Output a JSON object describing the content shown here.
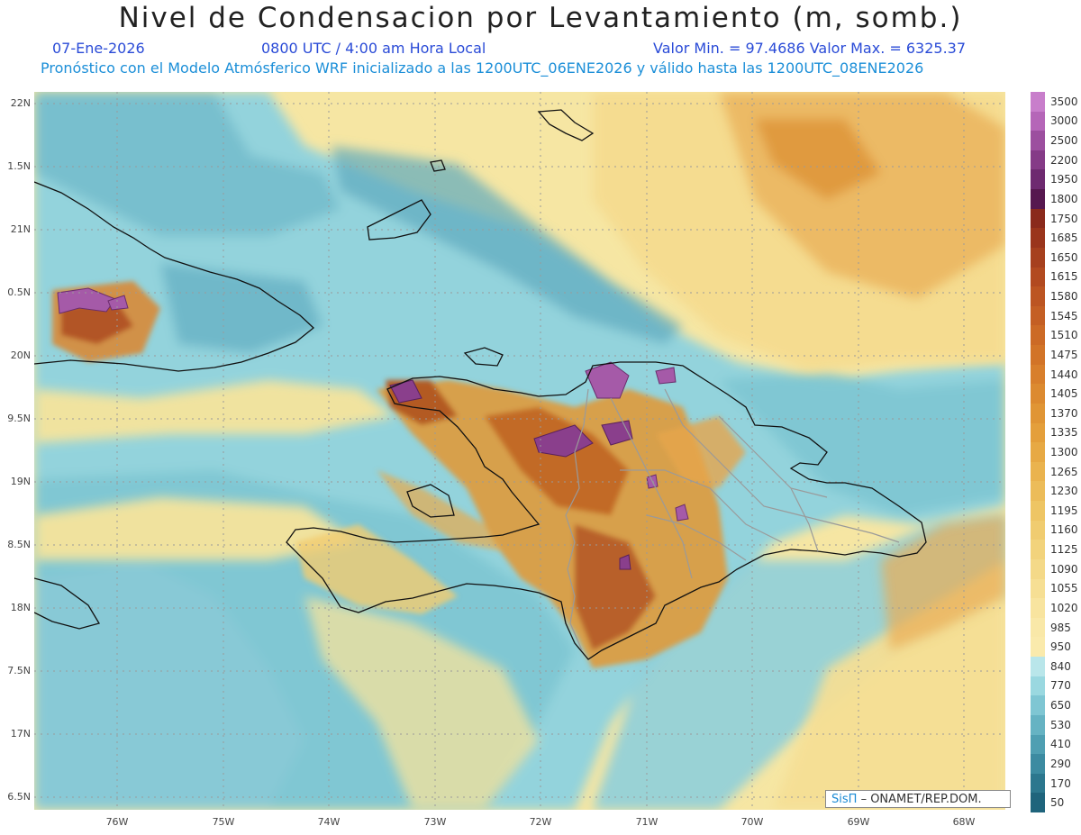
{
  "header": {
    "title": "Nivel de Condensacion por Levantamiento (m, somb.)",
    "date": "07-Ene-2026",
    "time": "0800 UTC / 4:00 am Hora Local",
    "minmax": "Valor Min. = 97.4686  Valor Max. = 6325.37",
    "model_line": "Pronóstico con el Modelo Atmósferico WRF inicializado a las 1200UTC_06ENE2026 y válido hasta las  1200UTC_08ENE2026"
  },
  "lat_labels": [
    "22N",
    "1.5N",
    "21N",
    "0.5N",
    "20N",
    "9.5N",
    "19N",
    "8.5N",
    "18N",
    "7.5N",
    "17N",
    "6.5N"
  ],
  "lon_labels": [
    "76W",
    "75W",
    "74W",
    "73W",
    "72W",
    "71W",
    "70W",
    "69W",
    "68W"
  ],
  "colorbar": {
    "levels": [
      "3500",
      "3000",
      "2500",
      "2200",
      "1950",
      "1800",
      "1750",
      "1685",
      "1650",
      "1615",
      "1580",
      "1545",
      "1510",
      "1475",
      "1440",
      "1405",
      "1370",
      "1335",
      "1300",
      "1265",
      "1230",
      "1195",
      "1160",
      "1125",
      "1090",
      "1055",
      "1020",
      "985",
      "950",
      "840",
      "770",
      "650",
      "530",
      "410",
      "290",
      "170",
      "50"
    ],
    "colors": [
      "#c87ecb",
      "#b566b8",
      "#9c4f9f",
      "#853b87",
      "#6e2a70",
      "#56184f",
      "#8a2a1c",
      "#9a351c",
      "#a6401e",
      "#b24a20",
      "#bc5522",
      "#c45f24",
      "#cc6a26",
      "#d27428",
      "#d87f2c",
      "#dc8a30",
      "#e09535",
      "#e49f3b",
      "#e7a944",
      "#eab34e",
      "#ecbc59",
      "#eec564",
      "#f0cc70",
      "#f2d37c",
      "#f4d988",
      "#f6df94",
      "#f8e49f",
      "#f9e8a8",
      "#faeaac",
      "#b9e6ea",
      "#9ad8e0",
      "#7fc6d3",
      "#66b3c3",
      "#4f9fb2",
      "#3c8ba1",
      "#2c778e",
      "#1f647c"
    ]
  },
  "credits": {
    "sis": "SisΠ",
    "org": "– ONAMET/REP.DOM."
  },
  "colors": {
    "ocean_low": "#8fd0da",
    "ocean_mid": "#6fbacb",
    "yellow": "#f7e7a2",
    "orange": "#df9a3c",
    "brown": "#a5501e",
    "purple": "#8a3f8c",
    "coast": "#111111",
    "border": "#9a9a9a"
  }
}
